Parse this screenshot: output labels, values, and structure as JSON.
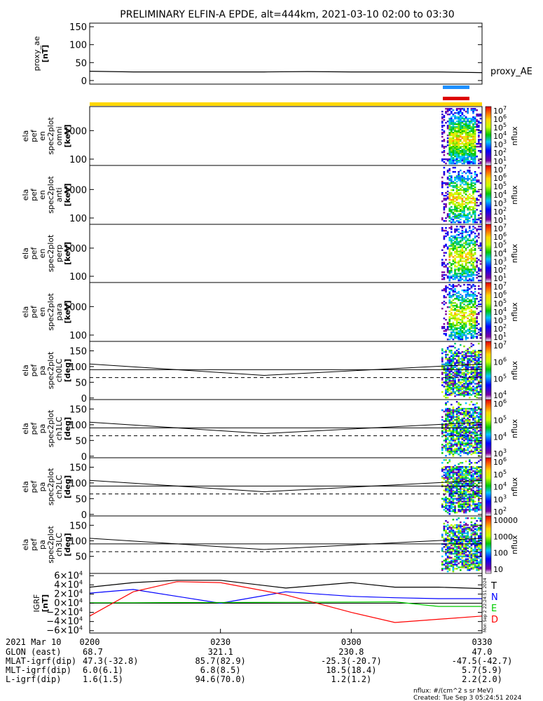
{
  "title": "PRELIMINARY ELFIN-A EPDE, alt=444km, 2021-03-10 02:00 to 03:30",
  "chart_data": [
    {
      "type": "line",
      "id": "proxy_ae",
      "ylabel": [
        "proxy_ae",
        "[nT]"
      ],
      "yticks": [
        "150",
        "100",
        "50",
        "0"
      ],
      "ytick_values": [
        150,
        100,
        50,
        0
      ],
      "ylim": [
        -10,
        160
      ],
      "legend": "proxy_AE",
      "series": [
        {
          "name": "proxy_AE",
          "color": "#000000",
          "x_minutes": [
            0,
            10,
            20,
            30,
            40,
            50,
            60,
            70,
            80,
            90
          ],
          "values": [
            26,
            24,
            24,
            24,
            24,
            25,
            24,
            24,
            24,
            22
          ]
        }
      ]
    },
    {
      "type": "heatmap",
      "id": "en_omni",
      "ylabel": [
        "ela",
        "pef",
        "en",
        "spec2plot",
        "omni",
        "[keV]"
      ],
      "yticks": [
        "1000",
        "100"
      ],
      "ytick_values": [
        1000,
        100
      ],
      "ylim": [
        60,
        7000
      ],
      "yscale": "log",
      "zlabel": "nflux",
      "zticks": [
        "10",
        "10",
        "10",
        "10",
        "10",
        "10",
        "10"
      ],
      "zexp": [
        "7",
        "6",
        "5",
        "4",
        "3",
        "2",
        "1"
      ]
    },
    {
      "type": "heatmap",
      "id": "en_anti",
      "ylabel": [
        "ela",
        "pef",
        "en",
        "spec2plot",
        "anti",
        "[keV]"
      ],
      "yticks": [
        "1000",
        "100"
      ],
      "ytick_values": [
        1000,
        100
      ],
      "ylim": [
        60,
        7000
      ],
      "yscale": "log",
      "zlabel": "nflux",
      "zticks": [
        "10",
        "10",
        "10",
        "10",
        "10",
        "10",
        "10"
      ],
      "zexp": [
        "7",
        "6",
        "5",
        "4",
        "3",
        "2",
        "1"
      ]
    },
    {
      "type": "heatmap",
      "id": "en_perp",
      "ylabel": [
        "ela",
        "pef",
        "en",
        "spec2plot",
        "perp",
        "[keV]"
      ],
      "yticks": [
        "1000",
        "100"
      ],
      "ytick_values": [
        1000,
        100
      ],
      "ylim": [
        60,
        7000
      ],
      "yscale": "log",
      "zlabel": "nflux",
      "zticks": [
        "10",
        "10",
        "10",
        "10",
        "10",
        "10",
        "10"
      ],
      "zexp": [
        "7",
        "6",
        "5",
        "4",
        "3",
        "2",
        "1"
      ]
    },
    {
      "type": "heatmap",
      "id": "en_para",
      "ylabel": [
        "ela",
        "pef",
        "en",
        "spec2plot",
        "para",
        "[keV]"
      ],
      "yticks": [
        "1000",
        "100"
      ],
      "ytick_values": [
        1000,
        100
      ],
      "ylim": [
        60,
        7000
      ],
      "yscale": "log",
      "zlabel": "nflux",
      "zticks": [
        "10",
        "10",
        "10",
        "10",
        "10",
        "10",
        "10"
      ],
      "zexp": [
        "7",
        "6",
        "5",
        "4",
        "3",
        "2",
        "1"
      ]
    },
    {
      "type": "heatmap",
      "id": "pa_ch0",
      "ylabel": [
        "ela",
        "pef",
        "pa",
        "spec2plot",
        "ch0LC",
        "[deg]"
      ],
      "yticks": [
        "150",
        "100",
        "50",
        "0"
      ],
      "ytick_values": [
        150,
        100,
        50,
        0
      ],
      "ylim": [
        -5,
        180
      ],
      "zlabel": "nflux",
      "zticks": [
        "10",
        "10",
        "10",
        "10"
      ],
      "zexp": [
        "7",
        "6",
        "5",
        "4"
      ]
    },
    {
      "type": "heatmap",
      "id": "pa_ch1",
      "ylabel": [
        "ela",
        "pef",
        "pa",
        "spec2plot",
        "ch1LC",
        "[deg]"
      ],
      "yticks": [
        "150",
        "100",
        "50",
        "0"
      ],
      "ytick_values": [
        150,
        100,
        50,
        0
      ],
      "ylim": [
        -5,
        180
      ],
      "zlabel": "nflux",
      "zticks": [
        "10",
        "10",
        "10",
        "10"
      ],
      "zexp": [
        "6",
        "5",
        "4",
        "3"
      ]
    },
    {
      "type": "heatmap",
      "id": "pa_ch2",
      "ylabel": [
        "ela",
        "pef",
        "pa",
        "spec2plot",
        "ch2LC",
        "[deg]"
      ],
      "yticks": [
        "150",
        "100",
        "50",
        "0"
      ],
      "ytick_values": [
        150,
        100,
        50,
        0
      ],
      "ylim": [
        -5,
        180
      ],
      "zlabel": "nflux",
      "zticks": [
        "10",
        "10",
        "10",
        "10",
        "10"
      ],
      "zexp": [
        "6",
        "5",
        "4",
        "3",
        "2"
      ]
    },
    {
      "type": "heatmap",
      "id": "pa_ch3",
      "ylabel": [
        "ela",
        "pef",
        "pa",
        "spec2plot",
        "ch3LC",
        "[deg]"
      ],
      "yticks": [
        "150",
        "100",
        "50"
      ],
      "ytick_values": [
        150,
        100,
        50
      ],
      "ylim": [
        -5,
        180
      ],
      "zlabel": "nflux",
      "zticks": [
        "10000",
        "1000",
        "100",
        "10"
      ],
      "zexp": [
        "",
        "",
        "",
        ""
      ]
    },
    {
      "type": "line",
      "id": "igrf",
      "ylabel": [
        "IGRF",
        "[nT]"
      ],
      "yticks": [
        "6",
        "4",
        "2",
        "0",
        "−2",
        "−4",
        "−6"
      ],
      "ytick_values": [
        60000,
        40000,
        20000,
        0,
        -20000,
        -40000,
        -60000
      ],
      "ylim": [
        -65000,
        65000
      ],
      "legend": [
        "T",
        "N",
        "E",
        "D"
      ],
      "series": [
        {
          "name": "T",
          "color": "#000000",
          "x_minutes": [
            0,
            10,
            20,
            30,
            45,
            60,
            70,
            80,
            90
          ],
          "values": [
            35000,
            45000,
            50000,
            50000,
            33000,
            45000,
            35000,
            35000,
            32000
          ]
        },
        {
          "name": "N",
          "color": "#0000ff",
          "x_minutes": [
            0,
            10,
            20,
            30,
            45,
            60,
            70,
            80,
            90
          ],
          "values": [
            22000,
            30000,
            15000,
            0,
            25000,
            15000,
            12000,
            10000,
            10000
          ]
        },
        {
          "name": "E",
          "color": "#00cc00",
          "x_minutes": [
            0,
            10,
            20,
            30,
            45,
            60,
            70,
            80,
            90
          ],
          "values": [
            1000,
            1000,
            1500,
            1500,
            2000,
            2500,
            3000,
            -7000,
            -7000
          ]
        },
        {
          "name": "D",
          "color": "#ff0000",
          "x_minutes": [
            0,
            10,
            20,
            30,
            45,
            60,
            70,
            80,
            90
          ],
          "values": [
            -28000,
            25000,
            47000,
            45000,
            18000,
            -20000,
            -42000,
            -35000,
            -28000
          ]
        }
      ]
    }
  ],
  "xaxis": {
    "date": "2021 Mar 10",
    "ticks": [
      "0200",
      "0230",
      "0300",
      "0330"
    ],
    "tick_minutes": [
      0,
      30,
      60,
      90
    ],
    "rows": [
      {
        "label": "GLON (east)",
        "values": [
          "68.7",
          "321.1",
          "230.8",
          "47.0"
        ]
      },
      {
        "label": "MLAT-igrf(dip)",
        "values": [
          "47.3(-32.8)",
          "85.7(82.9)",
          "-25.3(-20.7)",
          "-47.5(-42.7)"
        ]
      },
      {
        "label": "MLT-igrf(dip)",
        "values": [
          "6.0(6.1)",
          "6.8(8.5)",
          "18.5(18.4)",
          "5.7(5.9)"
        ]
      },
      {
        "label": "L-igrf(dip)",
        "values": [
          "1.6(1.5)",
          "94.6(70.0)",
          "1.2(1.2)",
          "2.2(2.0)"
        ]
      }
    ]
  },
  "footnote": {
    "units": "nflux: #/(cm^2 s sr MeV)",
    "created": "Created: Tue Sep  3 05:24:51 2024",
    "side_stamp": "Mon Sep  2 22:24:51 2024"
  },
  "colors": {
    "science_zone_bar": "#ffd700",
    "marker_blue": "#1e90ff",
    "marker_red": "#dd0000"
  }
}
